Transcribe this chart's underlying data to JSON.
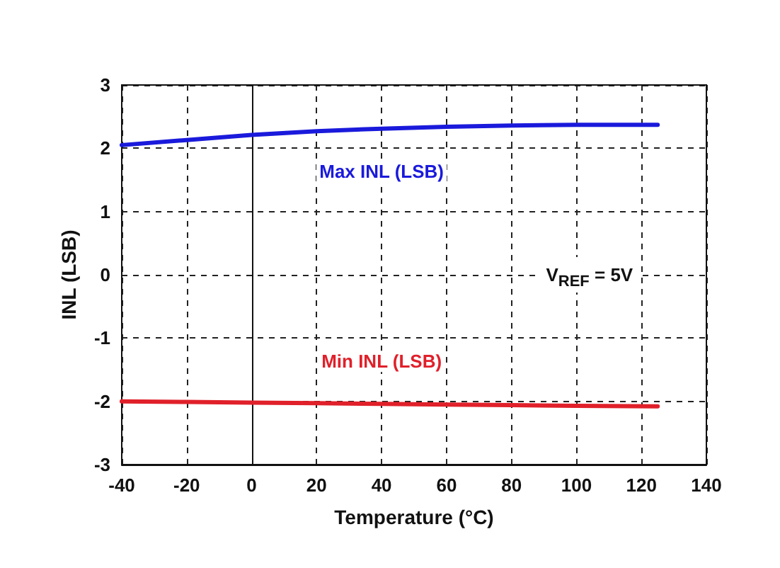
{
  "chart_data": {
    "type": "line",
    "xlabel": "Temperature (°C)",
    "ylabel": "INL (LSB)",
    "annotations": [
      "V$_{REF}$ = 5V"
    ],
    "series": [
      {
        "name": "Max INL (LSB)",
        "color": "#1a1adc",
        "x": [
          -40,
          -20,
          0,
          20,
          40,
          60,
          80,
          100,
          125
        ],
        "values": [
          2.05,
          2.13,
          2.21,
          2.27,
          2.31,
          2.34,
          2.36,
          2.37,
          2.37
        ]
      },
      {
        "name": "Min INL (LSB)",
        "color": "#e0202a",
        "x": [
          -40,
          -20,
          0,
          20,
          40,
          60,
          80,
          100,
          125
        ],
        "values": [
          -2.0,
          -2.01,
          -2.02,
          -2.03,
          -2.04,
          -2.05,
          -2.06,
          -2.07,
          -2.08
        ]
      }
    ],
    "xlim": [
      -40,
      140
    ],
    "xticks": [
      -40,
      -20,
      0,
      20,
      40,
      60,
      80,
      100,
      120,
      140
    ],
    "ylim": [
      -3,
      3
    ],
    "yticks": [
      -3,
      -2,
      -1,
      0,
      1,
      2,
      3
    ],
    "grid": true,
    "legend": false,
    "marker": "none",
    "line_style": "solid"
  }
}
